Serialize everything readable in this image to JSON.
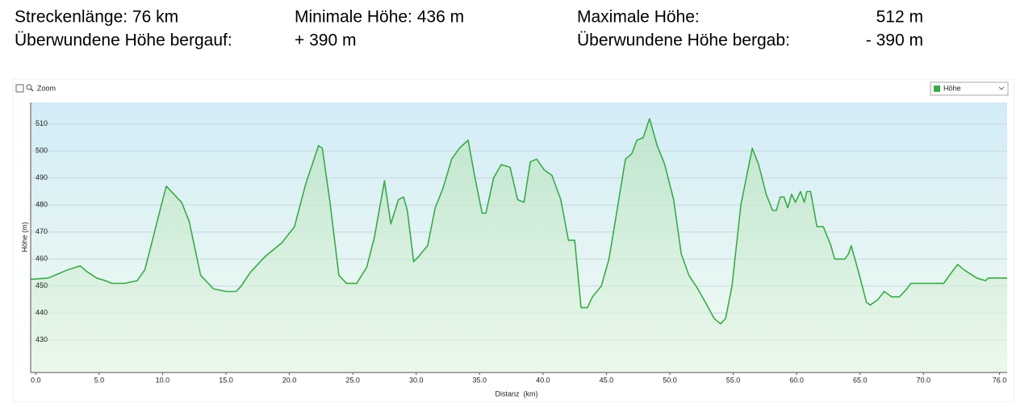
{
  "stats": {
    "distance": "Streckenlänge: 76 km",
    "min_height": "Minimale Höhe: 436 m",
    "max_height_label": "Maximale Höhe:",
    "max_height_value": "512 m",
    "ascent_label": "Überwundene Höhe bergauf:",
    "ascent_value": "+ 390 m",
    "descent_label": "Überwundene Höhe bergab:",
    "descent_value": "- 390 m"
  },
  "controls": {
    "zoom": "Zoom",
    "dropdown": "Höhe"
  },
  "chart_data": {
    "type": "area",
    "x_label": "Distanz  (km)",
    "y_label": "Höhe (m)",
    "xlim": [
      -0.4,
      76.6
    ],
    "ylim": [
      418,
      518
    ],
    "xticks": [
      {
        "value": 0,
        "label": "0.0"
      },
      {
        "value": 5,
        "label": "5.0"
      },
      {
        "value": 10,
        "label": "10.0"
      },
      {
        "value": 15,
        "label": "15.0"
      },
      {
        "value": 20,
        "label": "20.0"
      },
      {
        "value": 25,
        "label": "25.0"
      },
      {
        "value": 30,
        "label": "30.0"
      },
      {
        "value": 35,
        "label": "35.0"
      },
      {
        "value": 40,
        "label": "40.0"
      },
      {
        "value": 45,
        "label": "45.0"
      },
      {
        "value": 50,
        "label": "50.0"
      },
      {
        "value": 55,
        "label": "55.0"
      },
      {
        "value": 60,
        "label": "60.0"
      },
      {
        "value": 65,
        "label": "65.0"
      },
      {
        "value": 70,
        "label": "70.0"
      },
      {
        "value": 76,
        "label": "76.0"
      }
    ],
    "yticks": [
      430,
      440,
      450,
      460,
      470,
      480,
      490,
      500,
      510
    ],
    "grid": true,
    "series": [
      {
        "name": "Höhe",
        "color": "#3aaa48",
        "x": [
          -0.4,
          1.0,
          1.5,
          2.5,
          3.5,
          4.0,
          4.8,
          5.5,
          6.0,
          7.0,
          8.0,
          8.6,
          9.2,
          9.9,
          10.3,
          11.1,
          11.5,
          12.1,
          13.0,
          14.0,
          15.0,
          15.8,
          16.2,
          16.9,
          18.1,
          19.4,
          20.4,
          21.3,
          22.3,
          22.6,
          23.2,
          23.9,
          24.5,
          25.3,
          26.1,
          26.7,
          27.5,
          28.0,
          28.6,
          29.0,
          29.3,
          29.8,
          30.2,
          30.9,
          31.5,
          32.1,
          32.8,
          33.4,
          34.1,
          34.6,
          35.2,
          35.5,
          36.1,
          36.7,
          37.4,
          38.0,
          38.5,
          39.0,
          39.5,
          40.1,
          40.7,
          41.4,
          42.0,
          42.5,
          43.0,
          43.5,
          43.9,
          44.6,
          45.2,
          45.8,
          46.5,
          47.0,
          47.4,
          47.9,
          48.4,
          49.0,
          49.6,
          50.3,
          50.9,
          51.5,
          52.2,
          52.8,
          53.5,
          54.0,
          54.4,
          54.9,
          55.6,
          56.5,
          57.0,
          57.6,
          58.1,
          58.4,
          58.7,
          59.0,
          59.3,
          59.6,
          59.9,
          60.3,
          60.6,
          60.8,
          61.1,
          61.6,
          62.1,
          62.7,
          63.0,
          63.8,
          64.1,
          64.3,
          64.9,
          65.5,
          65.8,
          66.4,
          66.9,
          67.5,
          68.1,
          68.7,
          69.0,
          70.3,
          71.6,
          72.2,
          72.7,
          73.2,
          74.2,
          74.9,
          75.1,
          76.6
        ],
        "values": [
          452.5,
          453,
          454,
          456,
          457.5,
          455.5,
          453,
          452,
          451,
          451,
          452,
          456,
          467,
          480,
          487,
          483,
          481,
          474,
          454,
          449,
          448,
          448,
          450,
          455,
          461,
          466,
          472,
          488,
          502,
          501,
          481,
          454,
          451,
          451,
          457,
          468,
          489,
          473,
          482,
          483,
          478,
          459,
          461,
          465,
          479,
          486,
          497,
          501,
          504,
          491,
          477,
          477,
          490,
          495,
          494,
          482,
          481,
          496,
          497,
          493,
          491,
          482,
          467,
          467,
          442,
          442,
          446,
          450,
          460,
          477,
          497,
          499,
          504,
          505,
          512,
          502,
          495,
          482,
          462,
          454,
          449,
          444,
          438,
          436,
          438,
          450,
          480,
          501,
          495,
          484,
          478,
          478,
          483,
          483,
          479,
          484,
          481,
          485,
          481,
          485,
          485,
          472,
          472,
          465,
          460,
          460,
          462,
          465,
          455,
          444,
          443,
          445,
          448,
          446,
          446,
          449,
          451,
          451,
          451,
          455,
          458,
          456,
          453,
          452,
          453,
          453
        ]
      }
    ]
  }
}
